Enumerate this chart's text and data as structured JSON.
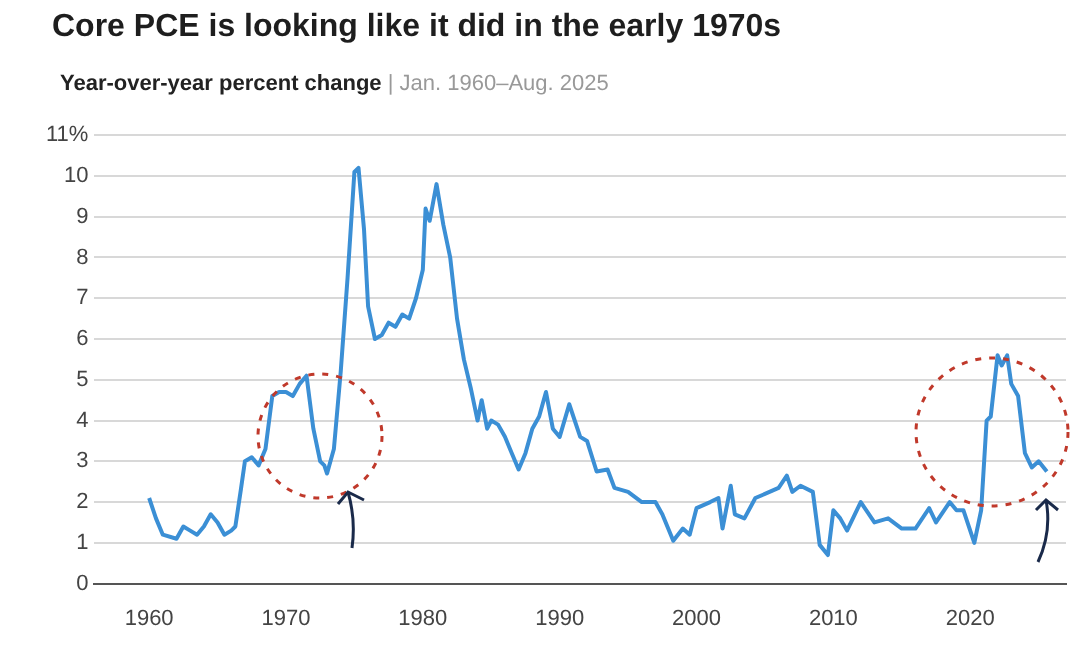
{
  "chart_data": {
    "type": "line",
    "title": "Core PCE is looking like it did in the early 1970s",
    "subtitle": "Year-over-year percent change | Jan. 1960–Aug. 2025",
    "x": [
      1960,
      1960.5,
      1961,
      1962,
      1962.5,
      1963,
      1963.5,
      1964,
      1964.5,
      1965,
      1965.5,
      1966,
      1966.3,
      1966.7,
      1967,
      1967.5,
      1968,
      1968.5,
      1969,
      1969.5,
      1970,
      1970.5,
      1971,
      1971.5,
      1972,
      1972.5,
      1972.8,
      1973,
      1973.5,
      1974,
      1974.5,
      1975,
      1975.3,
      1975.7,
      1976,
      1976.5,
      1977,
      1977.5,
      1978,
      1978.5,
      1979,
      1979.5,
      1980,
      1980.2,
      1980.5,
      1981,
      1981.5,
      1982,
      1982.5,
      1983,
      1983.5,
      1984,
      1984.3,
      1984.7,
      1985,
      1985.5,
      1986,
      1986.5,
      1987,
      1987.5,
      1988,
      1988.5,
      1989,
      1989.5,
      1990,
      1990.7,
      1991.5,
      1992,
      1992.7,
      1993.5,
      1994,
      1995,
      1996,
      1997,
      1997.5,
      1998.3,
      1999,
      1999.5,
      2000,
      2001,
      2001.6,
      2001.9,
      2002.5,
      2002.8,
      2003.5,
      2004.3,
      2005,
      2006,
      2006.6,
      2007,
      2007.6,
      2008.5,
      2009,
      2009.6,
      2010,
      2010.5,
      2011,
      2012,
      2013,
      2014,
      2015,
      2016,
      2017,
      2017.5,
      2018.5,
      2019,
      2019.5,
      2020.3,
      2020.8,
      2021.2,
      2021.5,
      2022,
      2022.3,
      2022.7,
      2023,
      2023.5,
      2024,
      2024.5,
      2025,
      2025.6
    ],
    "series": [
      {
        "color": "#3b8fd5",
        "values": [
          2.1,
          1.6,
          1.2,
          1.1,
          1.4,
          1.3,
          1.2,
          1.4,
          1.7,
          1.5,
          1.2,
          1.3,
          1.4,
          2.3,
          3.0,
          3.1,
          2.9,
          3.3,
          4.6,
          4.7,
          4.7,
          4.6,
          4.9,
          5.1,
          3.8,
          3.0,
          2.9,
          2.7,
          3.3,
          5.2,
          7.5,
          10.1,
          10.2,
          8.7,
          6.8,
          6.0,
          6.1,
          6.4,
          6.3,
          6.6,
          6.5,
          7.0,
          7.7,
          9.2,
          8.9,
          9.8,
          8.8,
          8.0,
          6.5,
          5.5,
          4.8,
          4.0,
          4.5,
          3.8,
          4.0,
          3.9,
          3.6,
          3.2,
          2.8,
          3.2,
          3.8,
          4.1,
          4.7,
          3.8,
          3.6,
          4.4,
          3.6,
          3.5,
          2.75,
          2.8,
          2.35,
          2.25,
          2.0,
          2.0,
          1.7,
          1.05,
          1.35,
          1.2,
          1.85,
          2.0,
          2.1,
          1.35,
          2.4,
          1.7,
          1.6,
          2.1,
          2.2,
          2.35,
          2.65,
          2.25,
          2.4,
          2.25,
          0.95,
          0.7,
          1.8,
          1.6,
          1.3,
          2.0,
          1.5,
          1.6,
          1.35,
          1.35,
          1.85,
          1.5,
          2.0,
          1.8,
          1.8,
          1.0,
          1.8,
          4.0,
          4.1,
          5.6,
          5.35,
          5.6,
          4.9,
          4.6,
          3.2,
          2.85,
          3.0,
          2.75
        ]
      }
    ],
    "xlim": [
      1956,
      2027
    ],
    "xticks": [
      1960,
      1970,
      1980,
      1990,
      2000,
      2010,
      2020
    ],
    "ylim": [
      0,
      11
    ],
    "yticks": [
      0,
      1,
      2,
      3,
      4,
      5,
      6,
      7,
      8,
      9,
      10,
      {
        "value": 11,
        "label": "11%"
      }
    ],
    "grid": "y",
    "marker": "none",
    "line_style": "solid"
  }
}
